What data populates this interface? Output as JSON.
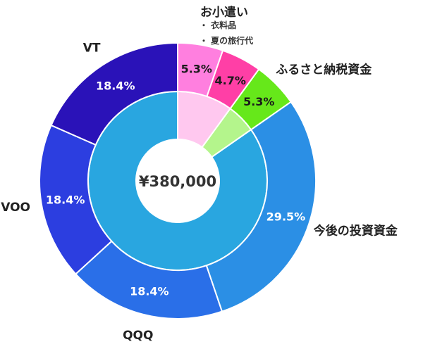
{
  "chart_data": {
    "type": "pie",
    "center_label": "¥380,000",
    "outer_ring": [
      {
        "label": "お小遣い",
        "pct_label": "5.3%",
        "value": 5.3,
        "color": "#ff7fdf",
        "sub_items": [
          "衣料品",
          "夏の旅行代"
        ]
      },
      {
        "label": "",
        "pct_label": "4.7%",
        "value": 4.7,
        "color": "#ff3fa6"
      },
      {
        "label": "ふるさと納税資金",
        "pct_label": "5.3%",
        "value": 5.3,
        "color": "#66e81a"
      },
      {
        "label": "今後の投資資金",
        "pct_label": "29.5%",
        "value": 29.5,
        "color": "#2b8fe5"
      },
      {
        "label": "QQQ",
        "pct_label": "18.4%",
        "value": 18.4,
        "color": "#2a6fe8"
      },
      {
        "label": "VOO",
        "pct_label": "18.4%",
        "value": 18.4,
        "color": "#2c3ee0"
      },
      {
        "label": "VT",
        "pct_label": "18.4%",
        "value": 18.4,
        "color": "#2a12b8"
      }
    ],
    "inner_ring": [
      {
        "value": 10.0,
        "color": "#ffc8ef"
      },
      {
        "value": 5.3,
        "color": "#b4f58c"
      },
      {
        "value": 84.7,
        "color": "#29a6e0"
      }
    ]
  },
  "bullet": "・"
}
